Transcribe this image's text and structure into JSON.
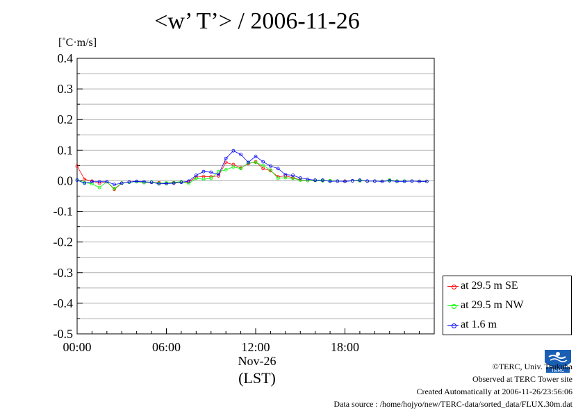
{
  "title": "<w’ T’> / 2006-11-26",
  "unit_label": "[˚C·m/s]",
  "chart_data": {
    "type": "line",
    "title": "<w’ T’> / 2006-11-26",
    "ylabel": "[˚C·m/s]",
    "xlabel": "(LST)",
    "x_date_label": "Nov-26",
    "ylim": [
      -0.5,
      0.4
    ],
    "xlim_hours": [
      0,
      24
    ],
    "yticks": [
      "0.4",
      "0.3",
      "0.2",
      "0.1",
      "0.0",
      "-0.1",
      "-0.2",
      "-0.3",
      "-0.4",
      "-0.5"
    ],
    "xticks": [
      "00:00",
      "06:00",
      "12:00",
      "18:00"
    ],
    "grid": true,
    "legend_position": "bottom-right",
    "x_hours": [
      0,
      0.5,
      1,
      1.5,
      2,
      2.5,
      3,
      3.5,
      4,
      4.5,
      5,
      5.5,
      6,
      6.5,
      7,
      7.5,
      8,
      8.5,
      9,
      9.5,
      10,
      10.5,
      11,
      11.5,
      12,
      12.5,
      13,
      13.5,
      14,
      14.5,
      15,
      15.5,
      16,
      16.5,
      17,
      17.5,
      18,
      18.5,
      19,
      19.5,
      20,
      20.5,
      21,
      21.5,
      22,
      22.5,
      23,
      23.5
    ],
    "series": [
      {
        "name": "at 29.5 m SE",
        "color": "#ff0000",
        "values": [
          0.048,
          0.005,
          -0.001,
          -0.008,
          -0.003,
          -0.028,
          -0.008,
          -0.004,
          -0.002,
          -0.006,
          -0.005,
          -0.006,
          -0.009,
          -0.006,
          -0.004,
          -0.004,
          0.012,
          0.014,
          0.013,
          0.016,
          0.06,
          0.053,
          0.042,
          0.056,
          0.062,
          0.04,
          0.033,
          0.013,
          0.016,
          0.01,
          0.003,
          0.001,
          0.001,
          0.0,
          0.0,
          -0.001,
          -0.001,
          0.0,
          0.0,
          -0.001,
          -0.001,
          -0.002,
          0.002,
          -0.001,
          -0.001,
          -0.001,
          -0.002,
          -0.002
        ]
      },
      {
        "name": "at 29.5 m NW",
        "color": "#00ff00",
        "values": [
          0.002,
          -0.006,
          -0.01,
          -0.022,
          -0.003,
          -0.026,
          -0.007,
          -0.005,
          -0.003,
          -0.006,
          -0.004,
          -0.008,
          -0.007,
          -0.005,
          -0.003,
          -0.009,
          0.008,
          0.005,
          0.008,
          0.03,
          0.036,
          0.045,
          0.04,
          0.058,
          0.06,
          0.05,
          0.035,
          0.008,
          0.01,
          0.008,
          0.002,
          0.001,
          0.001,
          0.0,
          0.0,
          -0.001,
          -0.002,
          0.0,
          0.0,
          -0.001,
          -0.001,
          -0.002,
          0.002,
          -0.001,
          -0.001,
          -0.001,
          -0.002,
          -0.002
        ]
      },
      {
        "name": "at 1.6 m",
        "color": "#0000ff",
        "values": [
          0.002,
          -0.008,
          -0.003,
          -0.003,
          -0.003,
          -0.012,
          -0.008,
          -0.004,
          -0.002,
          -0.003,
          -0.005,
          -0.01,
          -0.009,
          -0.008,
          -0.005,
          -0.001,
          0.018,
          0.03,
          0.028,
          0.02,
          0.073,
          0.098,
          0.086,
          0.06,
          0.08,
          0.062,
          0.048,
          0.04,
          0.02,
          0.018,
          0.009,
          0.005,
          0.002,
          0.002,
          -0.002,
          -0.001,
          -0.002,
          0.0,
          0.002,
          -0.001,
          -0.001,
          -0.002,
          0.0,
          -0.002,
          -0.002,
          -0.001,
          -0.002,
          -0.002
        ]
      }
    ]
  },
  "credits": {
    "copyright": "©TERC, Univ. Tsukuba",
    "observed": "Observed at TERC Tower site",
    "created": "Created Automatically at 2006-11-26/23:56:06",
    "source": "Data source : /home/hojyo/new/TERC-data/sorted_data/FLUX.30m.dat"
  },
  "logo_text": "TERC"
}
